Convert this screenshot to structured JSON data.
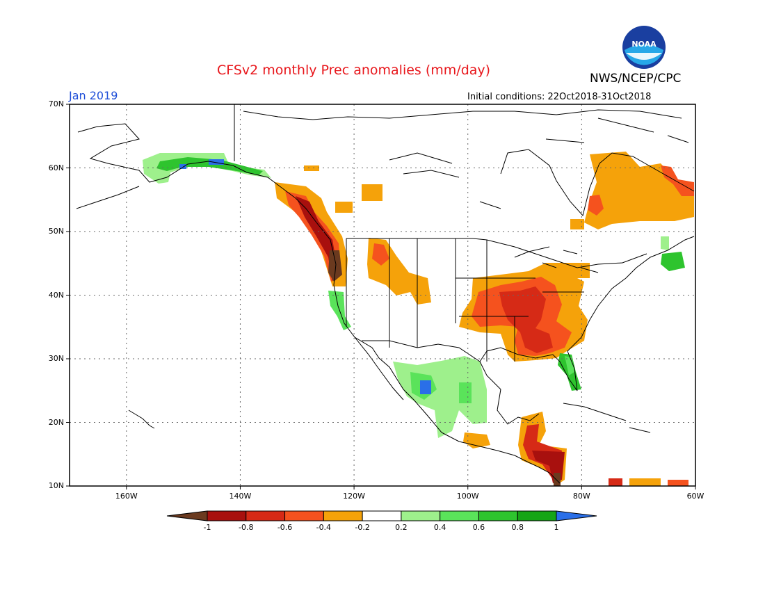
{
  "header": {
    "title": "CFSv2 monthly Prec anomalies (mm/day)",
    "valid_month": "Jan 2019",
    "agency": "NWS/NCEP/CPC",
    "initial_conditions": "Initial conditions: 22Oct2018-31Oct2018",
    "logo_text": "NOAA"
  },
  "map": {
    "lat_labels": [
      "70N",
      "60N",
      "50N",
      "40N",
      "30N",
      "20N",
      "10N"
    ],
    "lon_labels": [
      "160W",
      "140W",
      "120W",
      "100W",
      "80W",
      "60W"
    ],
    "grid": "dotted"
  },
  "colorbar": {
    "labels": [
      "-1",
      "-0.8",
      "-0.6",
      "-0.4",
      "-0.2",
      "0.2",
      "0.4",
      "0.6",
      "0.8",
      "1"
    ],
    "colors": [
      "#6b3a1f",
      "#a8100e",
      "#d62a16",
      "#f5521e",
      "#f5a20a",
      "#ffffff",
      "#9ef08c",
      "#5ae35a",
      "#2ec42e",
      "#15a515",
      "#2a6fe8"
    ]
  },
  "chart_data": {
    "type": "heatmap",
    "title": "CFSv2 monthly Prec anomalies (mm/day)",
    "xlabel": "",
    "ylabel": "",
    "xlim": [
      -170,
      -60
    ],
    "ylim": [
      10,
      70
    ],
    "units": "mm/day",
    "regions": [
      {
        "area": "Pacific Northwest coast",
        "value": -0.8
      },
      {
        "area": "Oregon coast",
        "value": -1.0
      },
      {
        "area": "British Columbia coast",
        "value": -0.6
      },
      {
        "area": "Southern Alaska coast",
        "value": 0.6
      },
      {
        "area": "Northern California coast",
        "value": 0.4
      },
      {
        "area": "Idaho / Montana",
        "value": -0.3
      },
      {
        "area": "Central Plains",
        "value": -0.4
      },
      {
        "area": "Mid-Mississippi Valley",
        "value": -0.6
      },
      {
        "area": "Southeast US / Alabama",
        "value": -0.6
      },
      {
        "area": "Florida peninsula",
        "value": 0.6
      },
      {
        "area": "Northwest Mexico",
        "value": 0.4
      },
      {
        "area": "Sierra Madre Occidental",
        "value": 0.8
      },
      {
        "area": "Eastern Canada / Quebec",
        "value": -0.3
      },
      {
        "area": "Nova Scotia",
        "value": 0.6
      },
      {
        "area": "Central America",
        "value": -0.8
      }
    ]
  }
}
